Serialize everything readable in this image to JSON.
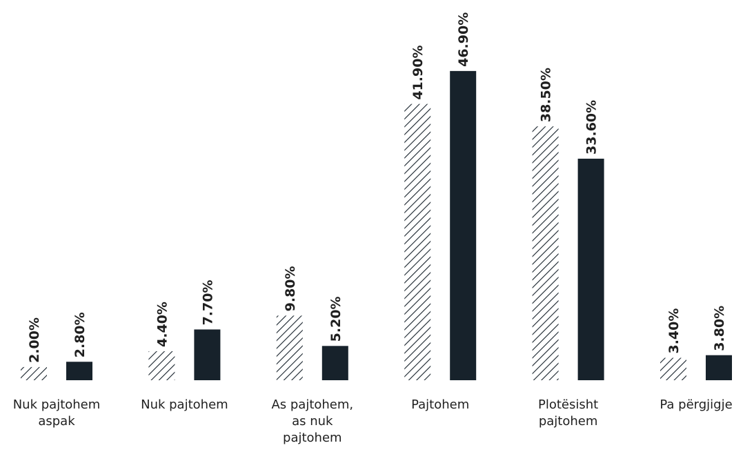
{
  "chart_data": {
    "type": "bar",
    "title": "",
    "xlabel": "",
    "ylabel": "",
    "ylim": [
      0,
      50
    ],
    "grid": false,
    "legend": "none",
    "categories": [
      [
        "Nuk pajtohem",
        "aspak"
      ],
      [
        "Nuk pajtohem"
      ],
      [
        "As pajtohem,",
        "as nuk",
        "pajtohem"
      ],
      [
        "Pajtohem"
      ],
      [
        "Plotësisht",
        "pajtohem"
      ],
      [
        "Pa përgjigje"
      ]
    ],
    "series": [
      {
        "style": "hatched",
        "values": [
          2.0,
          4.4,
          9.8,
          41.9,
          38.5,
          3.4
        ],
        "labels": [
          "2.00%",
          "4.40%",
          "9.80%",
          "41.90%",
          "38.50%",
          "3.40%"
        ]
      },
      {
        "style": "solid",
        "values": [
          2.8,
          7.7,
          5.2,
          46.9,
          33.6,
          3.8
        ],
        "labels": [
          "2.80%",
          "7.70%",
          "5.20%",
          "46.90%",
          "33.60%",
          "3.80%"
        ]
      }
    ]
  },
  "colors": {
    "bar": "#17222b",
    "text": "#1f1f1f"
  }
}
